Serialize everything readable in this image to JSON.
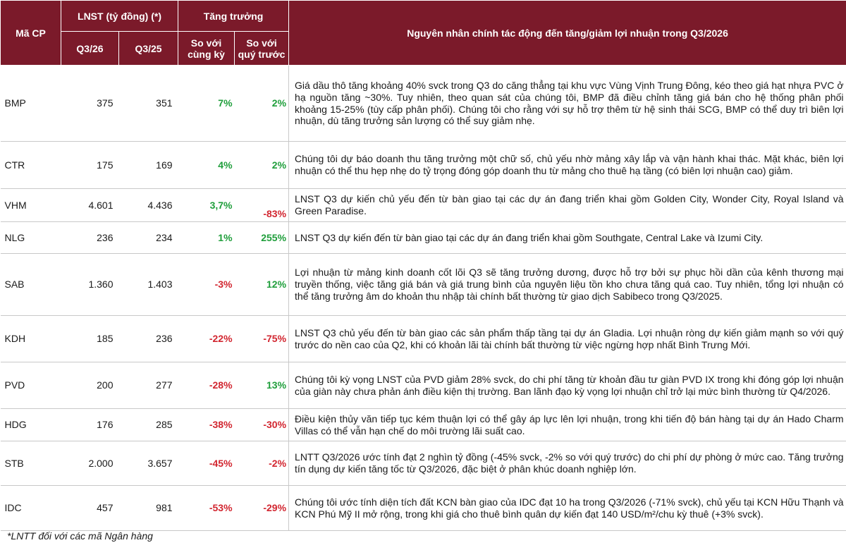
{
  "header": {
    "ticker": "Mã CP",
    "profit_group": "LNST (tỷ đồng) (*)",
    "q326": "Q3/26",
    "q325": "Q3/25",
    "growth_group": "Tăng trưởng",
    "yoy": "So với cùng kỳ",
    "qoq": "So với quý trước",
    "reason": "Nguyên nhân chính tác động đến tăng/giảm lợi nhuận trong Q3/2026"
  },
  "rows": [
    {
      "ticker": "BMP",
      "q326": "375",
      "q325": "351",
      "yoy": "7%",
      "qoq": "2%",
      "reason": "Giá dầu thô tăng khoảng 40% svck trong Q3 do căng thẳng tại khu vực Vùng Vịnh Trung Đông, kéo theo giá hạt nhựa PVC ở hạ nguồn tăng ~30%. Tuy nhiên, theo quan sát của chúng tôi, BMP đã điều chỉnh tăng giá bán cho hệ thống phân phối khoảng 15-25% (tùy cấp phân phối). Chúng tôi cho rằng với sự hỗ trợ thêm từ hệ sinh thái SCG, BMP có thể duy trì biên lợi nhuận, dù tăng trưởng sản lượng có thể suy giảm nhẹ."
    },
    {
      "ticker": "CTR",
      "q326": "175",
      "q325": "169",
      "yoy": "4%",
      "qoq": "2%",
      "reason": "Chúng tôi dự báo doanh thu tăng trưởng một chữ số, chủ yếu nhờ mảng xây lắp và vận hành khai thác. Mặt khác, biên lợi nhuận có thể thu hẹp nhẹ do tỷ trọng đóng góp doanh thu từ mảng cho thuê hạ tầng (có biên lợi nhuận cao) giảm."
    },
    {
      "ticker": "VHM",
      "q326": "4.601",
      "q325": "4.436",
      "yoy": "3,7%",
      "qoq": "-83%",
      "reason": "LNST Q3 dự kiến chủ yếu đến từ bàn giao tại các dự án đang triển khai gồm Golden City, Wonder City, Royal Island và Green Paradise."
    },
    {
      "ticker": "NLG",
      "q326": "236",
      "q325": "234",
      "yoy": "1%",
      "qoq": "255%",
      "reason": "LNST Q3 dự kiến đến từ bàn giao tại các dự án đang triển khai gồm Southgate, Central Lake và Izumi City."
    },
    {
      "ticker": "SAB",
      "q326": "1.360",
      "q325": "1.403",
      "yoy": "-3%",
      "qoq": "12%",
      "reason": "Lợi nhuận từ mảng kinh doanh cốt lõi Q3 sẽ tăng trưởng dương, được hỗ trợ bởi sự phục hồi dần của kênh thương mại truyền thống, việc tăng giá bán và giá trung bình của nguyên liệu tồn kho chưa tăng quá cao. Tuy nhiên, tổng lợi nhuận có thể tăng trưởng âm do khoản thu nhập tài chính bất thường từ giao dịch Sabibeco trong Q3/2025."
    },
    {
      "ticker": "KDH",
      "q326": "185",
      "q325": "236",
      "yoy": "-22%",
      "qoq": "-75%",
      "reason": "LNST Q3 chủ yếu đến từ bàn giao các sản phẩm thấp tầng tại dự án Gladia. Lợi nhuận ròng dự kiến giảm mạnh so với quý trước do nền cao của Q2, khi có khoản lãi tài chính bất thường từ việc ngừng hợp nhất Bình Trưng Mới."
    },
    {
      "ticker": "PVD",
      "q326": "200",
      "q325": "277",
      "yoy": "-28%",
      "qoq": "13%",
      "reason": "Chúng tôi kỳ vọng LNST của PVD giảm 28% svck, do chi phí tăng từ khoản đầu tư giàn PVD IX trong khi đóng góp lợi nhuận của giàn này chưa phản ánh điều kiện thị trường. Ban lãnh đạo kỳ vọng lợi nhuận chỉ trở lại mức bình thường từ Q4/2026."
    },
    {
      "ticker": "HDG",
      "q326": "176",
      "q325": "285",
      "yoy": "-38%",
      "qoq": "-30%",
      "reason": "Điều kiện thủy văn tiếp tục kém thuận lợi có thể gây áp lực lên lợi nhuận, trong khi tiến độ bán hàng tại dự án Hado Charm Villas có thể vẫn hạn chế do môi trường lãi suất cao."
    },
    {
      "ticker": "STB",
      "q326": "2.000",
      "q325": "3.657",
      "yoy": "-45%",
      "qoq": "-2%",
      "reason": "LNTT Q3/2026 ước tính đạt 2 nghìn tỷ đồng (-45% svck, -2% so với quý trước) do chi phí dự phòng ở mức cao. Tăng trưởng tín dụng dự kiến tăng tốc từ Q3/2026, đặc biệt ở phân khúc doanh nghiệp lớn."
    },
    {
      "ticker": "IDC",
      "q326": "457",
      "q325": "981",
      "yoy": "-53%",
      "qoq": "-29%",
      "reason": "Chúng tôi ước tính diện tích đất KCN bàn giao của IDC đạt 10 ha trong Q3/2026 (-71% svck), chủ yếu tại KCN Hữu Thạnh và KCN Phú Mỹ II mở rộng, trong khi giá cho thuê bình quân dự kiến đạt 140 USD/m²/chu kỳ thuê (+3% svck)."
    }
  ],
  "colors": {
    "header_bg": "#7b1a2a",
    "positive": "#1f9e3b",
    "negative": "#d22630"
  },
  "footnote": "*LNTT đối với các mã Ngân hàng"
}
